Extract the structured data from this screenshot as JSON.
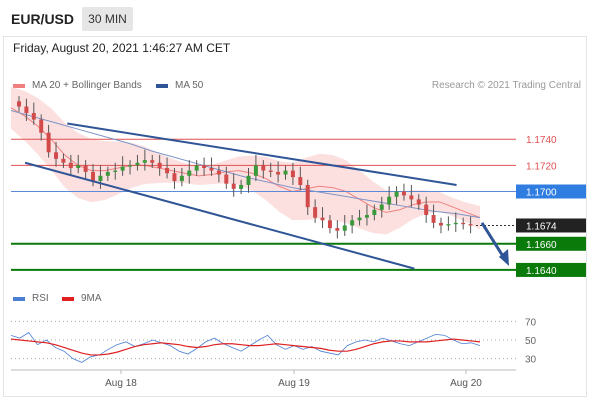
{
  "header": {
    "pair": "EUR/USD",
    "timeframe": "30 MIN",
    "datetime": "Friday, August 20, 2021 1:46:27 AM CET"
  },
  "legend": {
    "bollinger": "MA 20 + Bollinger Bands",
    "ma50": "MA 50",
    "rsi": "RSI",
    "rsi_ma": "9MA",
    "credit": "Research © 2021 Trading Central"
  },
  "colors": {
    "bollinger": "#f08080",
    "ma50": "#2f5597",
    "support": "#0a7a0a",
    "resistance": "#e05050",
    "price_tag": "#2f7de1",
    "rsi": "#4a7fd4",
    "rsi_ma": "#e02020"
  },
  "chart_data": [
    {
      "type": "candlestick",
      "title": "EUR/USD 30 MIN",
      "ylim": [
        1.163,
        1.177
      ],
      "x_ticks": [
        "Aug 18",
        "Aug 19",
        "Aug 20"
      ],
      "price": {
        "close": [
          1.1765,
          1.176,
          1.1755,
          1.1745,
          1.173,
          1.1725,
          1.1722,
          1.1718,
          1.172,
          1.1715,
          1.1708,
          1.1712,
          1.1715,
          1.1716,
          1.1719,
          1.172,
          1.1722,
          1.1724,
          1.1722,
          1.1718,
          1.1714,
          1.1708,
          1.1712,
          1.1716,
          1.172,
          1.1718,
          1.1716,
          1.1713,
          1.1706,
          1.1702,
          1.1705,
          1.1712,
          1.172,
          1.1716,
          1.1715,
          1.1713,
          1.1716,
          1.1711,
          1.1705,
          1.1688,
          1.168,
          1.1678,
          1.1672,
          1.167,
          1.1674,
          1.1678,
          1.168,
          1.1682,
          1.1686,
          1.169,
          1.1696,
          1.17,
          1.1697,
          1.1694,
          1.169,
          1.1682,
          1.1676,
          1.1674,
          1.1675,
          1.1676,
          1.1675,
          1.1674
        ],
        "current": "1.1674"
      },
      "levels": {
        "resistance": [
          "1.1740",
          "1.1720"
        ],
        "pivot": "1.1700",
        "support": [
          "1.1660",
          "1.1640"
        ]
      },
      "ma50": [
        1.1762,
        1.1757,
        1.1752,
        1.1747,
        1.1742,
        1.1737,
        1.1731,
        1.1726,
        1.1721,
        1.1716,
        1.1711,
        1.1707,
        1.1703,
        1.17,
        1.1697,
        1.1694,
        1.1691,
        1.1688,
        1.1685,
        1.1683,
        1.168
      ],
      "bollinger_mid": [
        1.1764,
        1.1758,
        1.175,
        1.174,
        1.1728,
        1.172,
        1.1716,
        1.1716,
        1.1718,
        1.172,
        1.172,
        1.1718,
        1.1716,
        1.1714,
        1.1712,
        1.1713,
        1.1715,
        1.1716,
        1.1714,
        1.171,
        1.1704,
        1.17,
        1.1702,
        1.1704,
        1.1703,
        1.17,
        1.1694,
        1.1688,
        1.1684,
        1.1686,
        1.169,
        1.1692,
        1.1692,
        1.1688,
        1.1684,
        1.168
      ],
      "trend_lines": [
        {
          "x": [
            0.12,
            0.95
          ],
          "y": [
            1.1752,
            1.1705
          ]
        },
        {
          "x": [
            0.03,
            0.86
          ],
          "y": [
            1.1722,
            1.1641
          ]
        }
      ]
    },
    {
      "type": "line",
      "title": "RSI",
      "ylim": [
        20,
        80
      ],
      "y_ticks": [
        "70",
        "50",
        "30"
      ],
      "series": [
        {
          "name": "RSI",
          "values": [
            55,
            52,
            58,
            45,
            50,
            42,
            38,
            30,
            26,
            32,
            34,
            40,
            45,
            48,
            43,
            46,
            50,
            47,
            44,
            38,
            35,
            41,
            48,
            52,
            46,
            42,
            38,
            44,
            50,
            55,
            45,
            40,
            44,
            40,
            43,
            38,
            36,
            34,
            44,
            48,
            50,
            48,
            52,
            49,
            46,
            44,
            48,
            52,
            56,
            55,
            50,
            46,
            47,
            44
          ]
        },
        {
          "name": "9MA",
          "values": [
            51,
            50,
            49,
            48,
            47,
            45,
            42,
            39,
            36,
            34,
            34,
            35,
            37,
            40,
            43,
            45,
            46,
            47,
            46,
            45,
            43,
            42,
            43,
            45,
            46,
            46,
            45,
            44,
            44,
            45,
            46,
            45,
            44,
            43,
            42,
            41,
            39,
            38,
            38,
            40,
            43,
            46,
            48,
            49,
            49,
            48,
            48,
            48,
            49,
            50,
            51,
            50,
            49,
            48
          ]
        }
      ]
    }
  ]
}
